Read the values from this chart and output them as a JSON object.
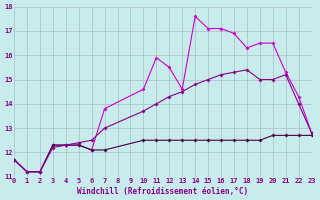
{
  "xlabel": "Windchill (Refroidissement éolien,°C)",
  "bg_color": "#c8ecec",
  "line_color1": "#cc00cc",
  "line_color2": "#880088",
  "line_color3": "#440044",
  "grid_color": "#aabbcc",
  "text_color": "#880088",
  "xlim": [
    0,
    23
  ],
  "ylim": [
    11,
    18
  ],
  "xticks": [
    0,
    1,
    2,
    3,
    4,
    5,
    6,
    7,
    8,
    9,
    10,
    11,
    12,
    13,
    14,
    15,
    16,
    17,
    18,
    19,
    20,
    21,
    22,
    23
  ],
  "yticks": [
    11,
    12,
    13,
    14,
    15,
    16,
    17,
    18
  ],
  "series1_x": [
    0,
    1,
    2,
    3,
    4,
    5,
    6,
    7,
    10,
    11,
    12,
    13,
    14,
    15,
    16,
    17,
    18,
    19,
    20,
    21,
    22,
    23
  ],
  "series1_y": [
    11.7,
    11.2,
    11.2,
    12.3,
    12.3,
    12.3,
    12.1,
    13.8,
    14.6,
    15.9,
    15.5,
    14.6,
    17.6,
    17.1,
    17.1,
    16.9,
    16.3,
    16.5,
    16.5,
    15.3,
    14.3,
    12.8
  ],
  "series2_x": [
    0,
    1,
    2,
    3,
    4,
    5,
    6,
    7,
    10,
    11,
    12,
    13,
    14,
    15,
    16,
    17,
    18,
    19,
    20,
    21,
    22,
    23
  ],
  "series2_y": [
    11.7,
    11.2,
    11.2,
    12.3,
    12.3,
    12.3,
    12.1,
    12.1,
    12.5,
    12.5,
    12.5,
    12.5,
    12.5,
    12.5,
    12.5,
    12.5,
    12.5,
    12.5,
    12.7,
    12.7,
    12.7,
    12.7
  ],
  "series3_x": [
    0,
    1,
    2,
    3,
    4,
    5,
    6,
    7,
    10,
    11,
    12,
    13,
    14,
    15,
    16,
    17,
    18,
    19,
    20,
    21,
    22,
    23
  ],
  "series3_y": [
    11.7,
    11.2,
    11.2,
    12.2,
    12.3,
    12.4,
    12.5,
    13.0,
    13.7,
    14.0,
    14.3,
    14.5,
    14.8,
    15.0,
    15.2,
    15.3,
    15.4,
    15.0,
    15.0,
    15.2,
    14.0,
    12.8
  ]
}
